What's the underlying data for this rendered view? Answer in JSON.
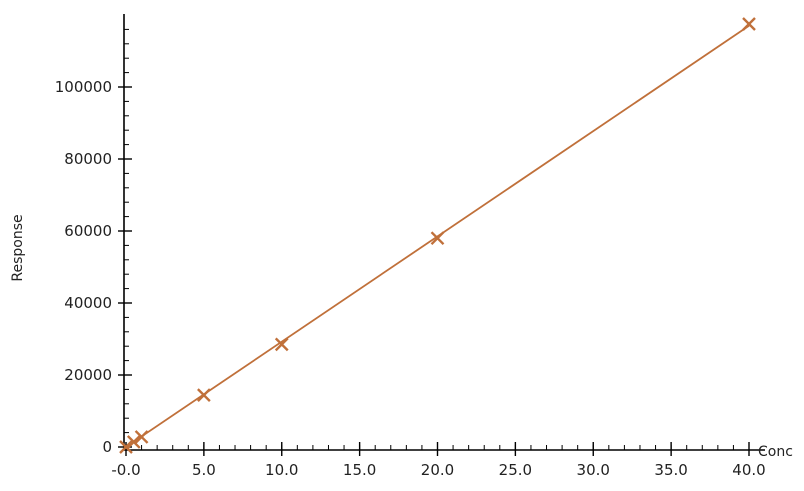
{
  "chart_data": {
    "type": "scatter",
    "xlabel": "Conc",
    "ylabel": "Response",
    "xlim": [
      -0.2,
      40.4
    ],
    "ylim": [
      -1000,
      118000
    ],
    "x_ticks": [
      {
        "value": 0,
        "label": "-0.0"
      },
      {
        "value": 5,
        "label": "5.0"
      },
      {
        "value": 10,
        "label": "10.0"
      },
      {
        "value": 15,
        "label": "15.0"
      },
      {
        "value": 20,
        "label": "20.0"
      },
      {
        "value": 25,
        "label": "25.0"
      },
      {
        "value": 30,
        "label": "30.0"
      },
      {
        "value": 35,
        "label": "35.0"
      },
      {
        "value": 40,
        "label": "40.0"
      }
    ],
    "y_ticks": [
      {
        "value": 0,
        "label": "0"
      },
      {
        "value": 20000,
        "label": "20000"
      },
      {
        "value": 40000,
        "label": "40000"
      },
      {
        "value": 60000,
        "label": "60000"
      },
      {
        "value": 80000,
        "label": "80000"
      },
      {
        "value": 100000,
        "label": "100000"
      }
    ],
    "series": [
      {
        "points": [
          {
            "x": 0.0,
            "y": 0
          },
          {
            "x": 0.5,
            "y": 1400
          },
          {
            "x": 1.0,
            "y": 2800
          },
          {
            "x": 5.0,
            "y": 14400
          },
          {
            "x": 10.0,
            "y": 28500
          },
          {
            "x": 20.0,
            "y": 58000
          },
          {
            "x": 40.0,
            "y": 117500
          }
        ],
        "fit_line": {
          "x": [
            0,
            40
          ],
          "y": [
            0,
            117000
          ]
        },
        "color": "#c0703a"
      }
    ],
    "grid": false
  }
}
